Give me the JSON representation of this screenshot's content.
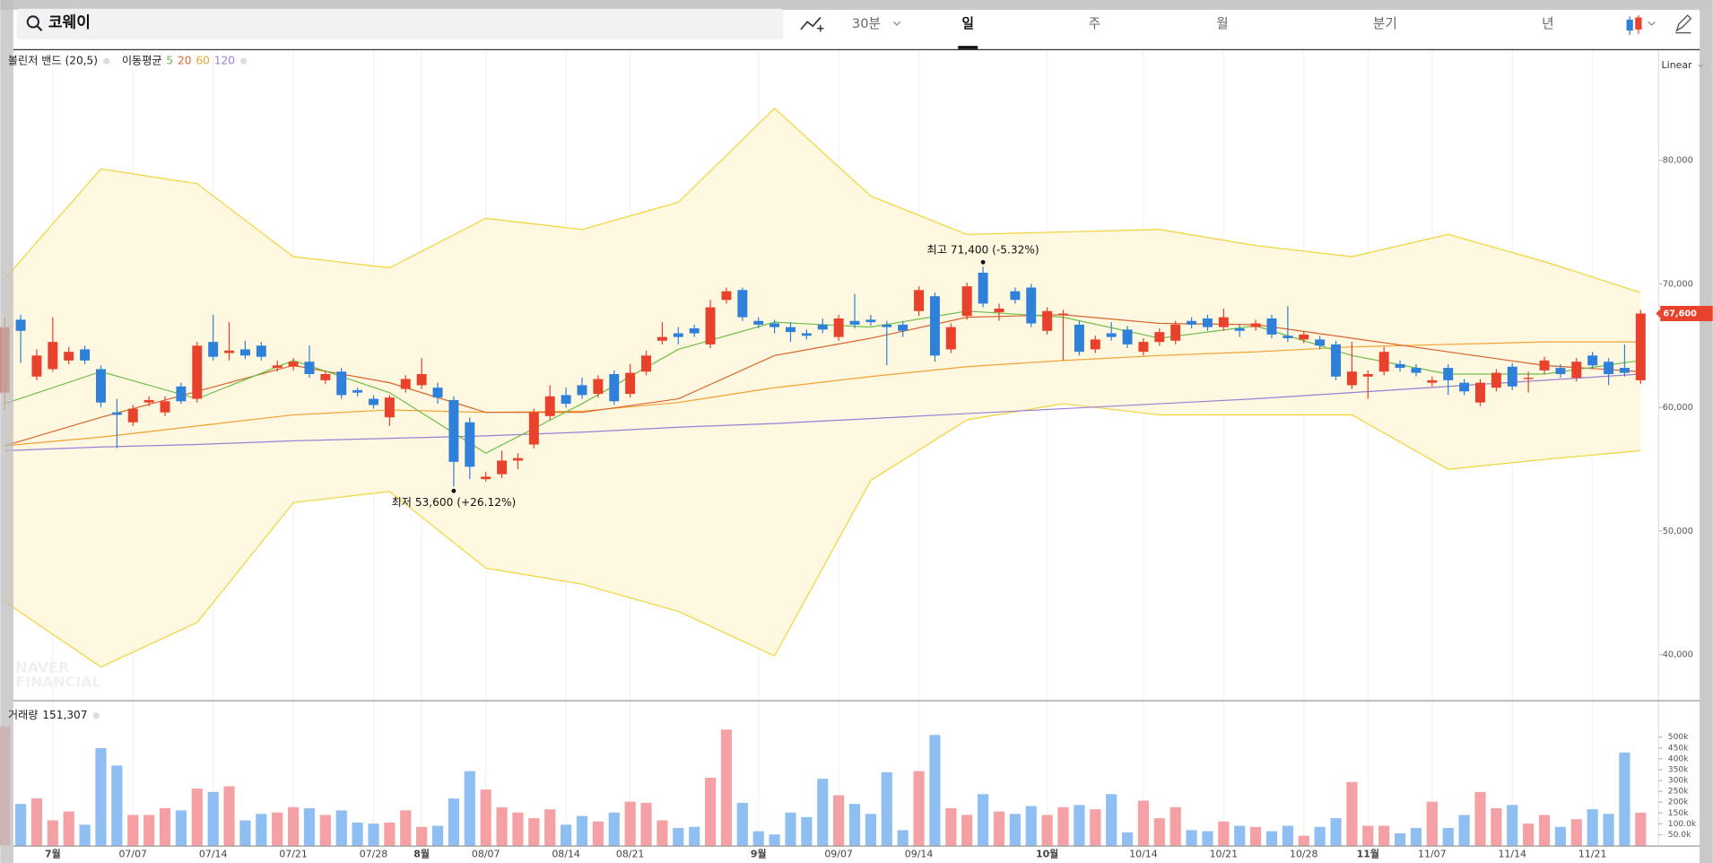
{
  "toolbar": {
    "search": "코웨이",
    "intervals": [
      "30분",
      "일",
      "주",
      "월",
      "분기",
      "년"
    ],
    "selected": 1
  },
  "watermark": [
    "NAVER",
    "FINANCIAL"
  ],
  "chart_data": [
    {
      "type": "candlestick",
      "scale_label": "Linear",
      "categories": [
        null,
        null,
        null,
        "7월",
        null,
        null,
        null,
        null,
        "07/07",
        null,
        null,
        null,
        null,
        "07/14",
        null,
        null,
        null,
        null,
        "07/21",
        null,
        null,
        null,
        null,
        "07/28",
        null,
        null,
        "8월",
        null,
        null,
        null,
        "08/07",
        null,
        null,
        null,
        null,
        "08/14",
        null,
        null,
        null,
        "08/21",
        null,
        null,
        null,
        null,
        null,
        null,
        null,
        "9월",
        null,
        null,
        null,
        null,
        "09/07",
        null,
        null,
        null,
        null,
        "09/14",
        null,
        null,
        null,
        null,
        null,
        null,
        null,
        "10월",
        null,
        null,
        null,
        null,
        null,
        "10/14",
        null,
        null,
        null,
        null,
        "10/21",
        null,
        null,
        null,
        null,
        "10/28",
        null,
        null,
        null,
        "11월",
        null,
        null,
        null,
        "11/07",
        null,
        null,
        null,
        null,
        "11/14",
        null,
        null,
        null,
        null,
        "11/21",
        null,
        null,
        null
      ],
      "open": [
        61200,
        67100,
        62500,
        63100,
        63800,
        64700,
        63100,
        59600,
        58800,
        60400,
        59600,
        61700,
        60700,
        65300,
        64400,
        64700,
        65000,
        63200,
        63300,
        63700,
        62200,
        62900,
        61400,
        60700,
        59200,
        61500,
        61800,
        61600,
        60600,
        58800,
        54200,
        54600,
        55700,
        57000,
        59300,
        61000,
        61800,
        61100,
        62700,
        61100,
        62900,
        65400,
        66000,
        66400,
        65100,
        68700,
        69500,
        67000,
        66800,
        66500,
        66000,
        66700,
        65700,
        67000,
        67100,
        66700,
        66700,
        67800,
        69000,
        64700,
        67400,
        70900,
        67700,
        69400,
        69700,
        66200,
        67500,
        66700,
        64700,
        66000,
        66300,
        64500,
        65300,
        65400,
        67000,
        67200,
        66500,
        66400,
        66500,
        67200,
        65800,
        65500,
        65500,
        65100,
        61800,
        62500,
        62900,
        63500,
        63200,
        62000,
        63200,
        62000,
        60400,
        61600,
        63300,
        62300,
        63000,
        63200,
        62400,
        64200,
        63700,
        63200,
        62200
      ],
      "high": [
        67300,
        67500,
        64700,
        67300,
        64900,
        65000,
        63400,
        60700,
        60200,
        60900,
        60900,
        62000,
        65300,
        67500,
        66900,
        65400,
        65300,
        63800,
        64000,
        65000,
        63000,
        63200,
        61600,
        61000,
        61000,
        62600,
        64000,
        62000,
        60900,
        59200,
        54800,
        56500,
        56300,
        59900,
        61800,
        61600,
        62400,
        62600,
        63000,
        63500,
        64600,
        66900,
        66500,
        66700,
        68700,
        69700,
        69700,
        67300,
        67100,
        66900,
        66300,
        67200,
        67500,
        69200,
        67500,
        67000,
        67000,
        69800,
        69300,
        66800,
        70100,
        71400,
        68400,
        69700,
        70000,
        68100,
        67900,
        67000,
        65800,
        66900,
        66600,
        65600,
        66400,
        67000,
        67300,
        67500,
        68000,
        66700,
        67100,
        67500,
        68200,
        66200,
        65800,
        65400,
        65300,
        63000,
        64900,
        63800,
        63500,
        62500,
        63500,
        62300,
        62300,
        63100,
        63600,
        62900,
        64100,
        63500,
        64000,
        64500,
        64000,
        65100,
        67900
      ],
      "low": [
        59800,
        63600,
        62200,
        62900,
        63500,
        63500,
        60000,
        56700,
        58500,
        60100,
        59300,
        60300,
        60400,
        63800,
        63800,
        63900,
        63800,
        62900,
        63000,
        62400,
        61900,
        60700,
        60900,
        59900,
        58500,
        61200,
        61500,
        60300,
        53600,
        54200,
        54000,
        54300,
        55000,
        56700,
        59000,
        60000,
        60700,
        60800,
        60200,
        60800,
        62600,
        65100,
        65100,
        65700,
        64800,
        68400,
        67000,
        66400,
        66000,
        65300,
        65500,
        66000,
        65400,
        66400,
        66600,
        63400,
        65700,
        67400,
        63700,
        64400,
        67100,
        68100,
        67000,
        68400,
        66500,
        65900,
        63800,
        64200,
        64400,
        65400,
        64800,
        64200,
        65000,
        65100,
        66400,
        66200,
        66200,
        65700,
        66200,
        65600,
        65300,
        65200,
        64700,
        62200,
        61500,
        60700,
        62600,
        62900,
        62500,
        61700,
        61000,
        61000,
        60100,
        61300,
        61400,
        61200,
        62700,
        62400,
        62100,
        63100,
        61800,
        62500,
        61900
      ],
      "close": [
        66500,
        66200,
        64200,
        65300,
        64500,
        63800,
        60400,
        59400,
        59900,
        60600,
        60500,
        60500,
        65000,
        64100,
        64600,
        64200,
        64100,
        63400,
        63700,
        62700,
        62700,
        61000,
        61200,
        60200,
        60800,
        62300,
        62700,
        60800,
        55600,
        55200,
        54400,
        55700,
        55900,
        59600,
        60900,
        60300,
        61000,
        62300,
        60500,
        62800,
        64200,
        65700,
        65700,
        66000,
        68100,
        69400,
        67300,
        66700,
        66500,
        66100,
        65800,
        66300,
        67200,
        66700,
        66900,
        66500,
        66200,
        69500,
        64200,
        66500,
        69800,
        68400,
        68000,
        68700,
        66800,
        67800,
        67600,
        64500,
        65500,
        65700,
        65100,
        65300,
        66100,
        66700,
        66700,
        66500,
        67300,
        66200,
        66800,
        65900,
        65600,
        65900,
        65000,
        62500,
        62900,
        62700,
        64500,
        63200,
        62800,
        62200,
        62200,
        61300,
        62000,
        62800,
        61700,
        62400,
        63800,
        62700,
        63700,
        63400,
        62700,
        62800,
        67600
      ],
      "up_color": "#e8412c",
      "down_color": "#2f80d8",
      "ylim": [
        36400,
        88900
      ],
      "yticks": [
        {
          "value": 40000,
          "label": "40,000"
        },
        {
          "value": 50000,
          "label": "50,000"
        },
        {
          "value": 60000,
          "label": "60,000"
        },
        {
          "value": 70000,
          "label": "70,000"
        },
        {
          "value": 80000,
          "label": "80,000"
        }
      ],
      "overlay_x": [
        0,
        6,
        12,
        18,
        24,
        30,
        36,
        42,
        48,
        54,
        60,
        66,
        72,
        78,
        84,
        90,
        96,
        102
      ],
      "bollinger": {
        "name": "볼린저 밴드 (20,5)",
        "color": "#f2d43a",
        "fill": "#fff8e0",
        "upper": [
          70400,
          79300,
          78100,
          72200,
          71300,
          75300,
          74400,
          76600,
          84200,
          77100,
          74000,
          74200,
          74400,
          73100,
          72200,
          74000,
          71800,
          69300
        ],
        "lower": [
          44300,
          39000,
          42600,
          52300,
          53200,
          47000,
          45700,
          43500,
          39900,
          54100,
          59000,
          60300,
          59400,
          59400,
          59400,
          55000,
          55800,
          56500
        ]
      },
      "moving_average": {
        "name": "이동평균",
        "series": [
          {
            "name": "5",
            "color": "#6fbf4a",
            "values": [
              60300,
              62900,
              60700,
              63800,
              61200,
              56300,
              60300,
              64700,
              66900,
              66500,
              67800,
              67300,
              65600,
              66600,
              64200,
              62700,
              62700,
              63800
            ]
          },
          {
            "name": "20",
            "color": "#d9642e",
            "values": [
              56900,
              59200,
              61300,
              63400,
              62000,
              59600,
              59600,
              60700,
              64200,
              65600,
              67300,
              67500,
              66800,
              66700,
              65600,
              64500,
              63400,
              62900
            ]
          },
          {
            "name": "60",
            "color": "#f0a232",
            "values": [
              56900,
              57600,
              58500,
              59400,
              59800,
              59600,
              59700,
              60400,
              61600,
              62500,
              63300,
              63800,
              64200,
              64500,
              64900,
              65100,
              65300,
              65300
            ]
          },
          {
            "name": "120",
            "color": "#9b7fd6",
            "values": [
              56500,
              56800,
              57000,
              57300,
              57500,
              57700,
              58000,
              58400,
              58700,
              59100,
              59500,
              59900,
              60300,
              60700,
              61200,
              61700,
              62200,
              62700
            ]
          }
        ]
      },
      "annotations": {
        "high": "최고 71,400 (-5.32%)",
        "low": "최저 53,600 (+26.12%)",
        "last": "67,600"
      }
    },
    {
      "type": "bar",
      "name": "거래량",
      "last_label": "151,307",
      "values": [
        550000,
        192000,
        217000,
        116000,
        157000,
        96000,
        449000,
        369000,
        141000,
        141000,
        172000,
        162000,
        263000,
        247000,
        273000,
        116000,
        146000,
        152000,
        177000,
        172000,
        141000,
        162000,
        106000,
        101000,
        106000,
        162000,
        86000,
        91000,
        217000,
        343000,
        258000,
        177000,
        152000,
        126000,
        167000,
        96000,
        136000,
        111000,
        152000,
        202000,
        197000,
        116000,
        81000,
        86000,
        313000,
        535000,
        197000,
        66000,
        51000,
        152000,
        131000,
        308000,
        232000,
        192000,
        146000,
        338000,
        71000,
        343000,
        510000,
        172000,
        141000,
        237000,
        157000,
        146000,
        182000,
        141000,
        177000,
        187000,
        167000,
        237000,
        61000,
        207000,
        126000,
        177000,
        71000,
        66000,
        111000,
        91000,
        86000,
        66000,
        91000,
        45000,
        86000,
        126000,
        293000,
        91000,
        91000,
        56000,
        81000,
        202000,
        81000,
        141000,
        247000,
        172000,
        187000,
        101000,
        141000,
        86000,
        121000,
        167000,
        146000,
        429000,
        151307
      ],
      "up_color": "#f4a0a4",
      "down_color": "#8fbff2",
      "ylim": [
        0,
        650000
      ],
      "yticks": [
        {
          "value": 50000,
          "label": "50.0k"
        },
        {
          "value": 100000,
          "label": "100.0k"
        },
        {
          "value": 150000,
          "label": "150k"
        },
        {
          "value": 200000,
          "label": "200k"
        },
        {
          "value": 250000,
          "label": "250k"
        },
        {
          "value": 300000,
          "label": "300k"
        },
        {
          "value": 350000,
          "label": "350k"
        },
        {
          "value": 400000,
          "label": "400k"
        },
        {
          "value": 450000,
          "label": "450k"
        },
        {
          "value": 500000,
          "label": "500k"
        }
      ]
    }
  ]
}
